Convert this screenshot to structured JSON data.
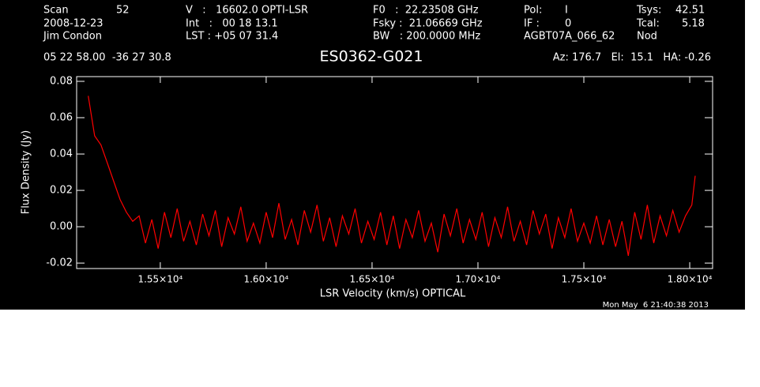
{
  "chart_data": {
    "type": "line",
    "header": [
      "Scan",
      "52",
      "V   :   16602.0 OPTI-LSR",
      "F0   :  22.23508 GHz",
      "Pol:",
      "I",
      "Tsys:",
      "42.51",
      "2008-12-23",
      "Int   :   00 18 13.1",
      "Fsky :  21.06669 GHz",
      "IF :",
      "0",
      "Tcal:",
      "5.18",
      "Jim Condon",
      "LST : +05 07 31.4",
      "BW   : 200.0000 MHz",
      "AGBT07A_066_62",
      "Nod",
      "05 22 58.00  -36 27 30.8",
      "Az: 176.7   El:  15.1   HA: -0.26"
    ],
    "title": "ES0362-G021",
    "x_label": "LSR Velocity (km/s) OPTICAL",
    "y_label": "Flux Density (Jy)",
    "timestamp": "Mon May  6 21:40:38 2013",
    "xlim": [
      15105,
      18108
    ],
    "ylim": [
      -0.023,
      0.0826
    ],
    "xticks": [
      {
        "value": 15500,
        "label": "1.55×10⁴"
      },
      {
        "value": 16000,
        "label": "1.60×10⁴"
      },
      {
        "value": 16500,
        "label": "1.65×10⁴"
      },
      {
        "value": 17000,
        "label": "1.70×10⁴"
      },
      {
        "value": 17500,
        "label": "1.75×10⁴"
      },
      {
        "value": 18000,
        "label": "1.80×10⁴"
      }
    ],
    "yticks": [
      -0.02,
      {
        "value": 0,
        "label": "0.00"
      },
      0.02,
      0.04,
      0.06,
      0.08
    ],
    "x": [
      15160,
      15190,
      15220,
      15250,
      15280,
      15310,
      15340,
      15370,
      15400,
      15430,
      15460,
      15490,
      15520,
      15550,
      15580,
      15610,
      15640,
      15670,
      15700,
      15730,
      15760,
      15790,
      15820,
      15850,
      15880,
      15910,
      15940,
      15970,
      16000,
      16030,
      16060,
      16090,
      16120,
      16150,
      16180,
      16210,
      16240,
      16270,
      16300,
      16330,
      16360,
      16390,
      16420,
      16450,
      16480,
      16510,
      16540,
      16570,
      16600,
      16630,
      16660,
      16690,
      16720,
      16750,
      16780,
      16810,
      16840,
      16870,
      16900,
      16930,
      16960,
      16990,
      17020,
      17050,
      17080,
      17110,
      17140,
      17170,
      17200,
      17230,
      17260,
      17290,
      17320,
      17350,
      17380,
      17410,
      17440,
      17470,
      17500,
      17530,
      17560,
      17590,
      17620,
      17650,
      17680,
      17710,
      17740,
      17770,
      17800,
      17830,
      17860,
      17890,
      17920,
      17950,
      17980,
      18010,
      18026
    ],
    "series": [
      {
        "name": null,
        "color": "#ff0000",
        "values": [
          0.072,
          0.05,
          0.045,
          0.035,
          0.025,
          0.015,
          0.008,
          0.003,
          0.006,
          -0.009,
          0.004,
          -0.012,
          0.008,
          -0.006,
          0.01,
          -0.008,
          0.003,
          -0.01,
          0.007,
          -0.005,
          0.009,
          -0.011,
          0.005,
          -0.004,
          0.011,
          -0.008,
          0.002,
          -0.009,
          0.008,
          -0.006,
          0.013,
          -0.007,
          0.004,
          -0.01,
          0.009,
          -0.003,
          0.012,
          -0.008,
          0.005,
          -0.011,
          0.006,
          -0.004,
          0.01,
          -0.009,
          0.003,
          -0.007,
          0.008,
          -0.01,
          0.006,
          -0.012,
          0.004,
          -0.006,
          0.009,
          -0.008,
          0.002,
          -0.014,
          0.007,
          -0.005,
          0.01,
          -0.009,
          0.004,
          -0.007,
          0.008,
          -0.011,
          0.005,
          -0.006,
          0.011,
          -0.008,
          0.003,
          -0.01,
          0.009,
          -0.004,
          0.007,
          -0.012,
          0.005,
          -0.006,
          0.01,
          -0.008,
          0.002,
          -0.009,
          0.006,
          -0.01,
          0.004,
          -0.011,
          0.003,
          -0.016,
          0.008,
          -0.007,
          0.012,
          -0.009,
          0.006,
          -0.005,
          0.009,
          -0.003,
          0.006,
          0.012,
          0.028
        ]
      }
    ]
  }
}
